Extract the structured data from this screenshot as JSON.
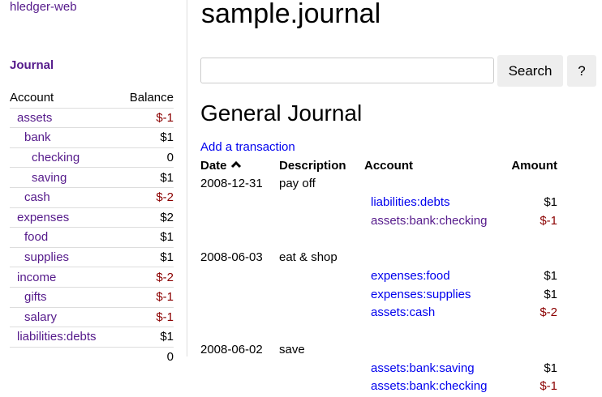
{
  "sidebar": {
    "brand": "hledger-web",
    "journal_link": "Journal",
    "headers": {
      "account": "Account",
      "balance": "Balance"
    },
    "accounts": [
      {
        "name": "assets",
        "balance": "$-1",
        "depth": 1,
        "neg": true
      },
      {
        "name": "bank",
        "balance": "$1",
        "depth": 2
      },
      {
        "name": "checking",
        "balance": "0",
        "depth": 3
      },
      {
        "name": "saving",
        "balance": "$1",
        "depth": 3
      },
      {
        "name": "cash",
        "balance": "$-2",
        "depth": 2,
        "neg": true
      },
      {
        "name": "expenses",
        "balance": "$2",
        "depth": 1
      },
      {
        "name": "food",
        "balance": "$1",
        "depth": 2
      },
      {
        "name": "supplies",
        "balance": "$1",
        "depth": 2
      },
      {
        "name": "income",
        "balance": "$-2",
        "depth": 1,
        "neg": true
      },
      {
        "name": "gifts",
        "balance": "$-1",
        "depth": 2,
        "neg": true
      },
      {
        "name": "salary",
        "balance": "$-1",
        "depth": 2,
        "neg": true
      },
      {
        "name": "liabilities:debts",
        "balance": "$1",
        "depth": 1
      }
    ],
    "total": "0"
  },
  "main": {
    "title": "sample.journal",
    "search": {
      "value": "",
      "placeholder": "",
      "button": "Search",
      "help": "?"
    },
    "heading": "General Journal",
    "add_link": "Add a transaction",
    "columns": {
      "date": "Date",
      "sort_icon": "chevron-up",
      "description": "Description",
      "account": "Account",
      "amount": "Amount"
    },
    "transactions": [
      {
        "date": "2008-12-31",
        "description": "pay off",
        "postings": [
          {
            "account": "liabilities:debts",
            "amount": "$1",
            "visited": false
          },
          {
            "account": "assets:bank:checking",
            "amount": "$-1",
            "neg": true,
            "visited": true
          }
        ]
      },
      {
        "date": "2008-06-03",
        "description": "eat & shop",
        "postings": [
          {
            "account": "expenses:food",
            "amount": "$1"
          },
          {
            "account": "expenses:supplies",
            "amount": "$1"
          },
          {
            "account": "assets:cash",
            "amount": "$-2",
            "neg": true
          }
        ]
      },
      {
        "date": "2008-06-02",
        "description": "save",
        "postings": [
          {
            "account": "assets:bank:saving",
            "amount": "$1"
          },
          {
            "account": "assets:bank:checking",
            "amount": "$-1",
            "neg": true
          }
        ]
      }
    ]
  },
  "colors": {
    "visited": "#551a8b",
    "link": "#0000ee",
    "negative": "#8b0000"
  }
}
